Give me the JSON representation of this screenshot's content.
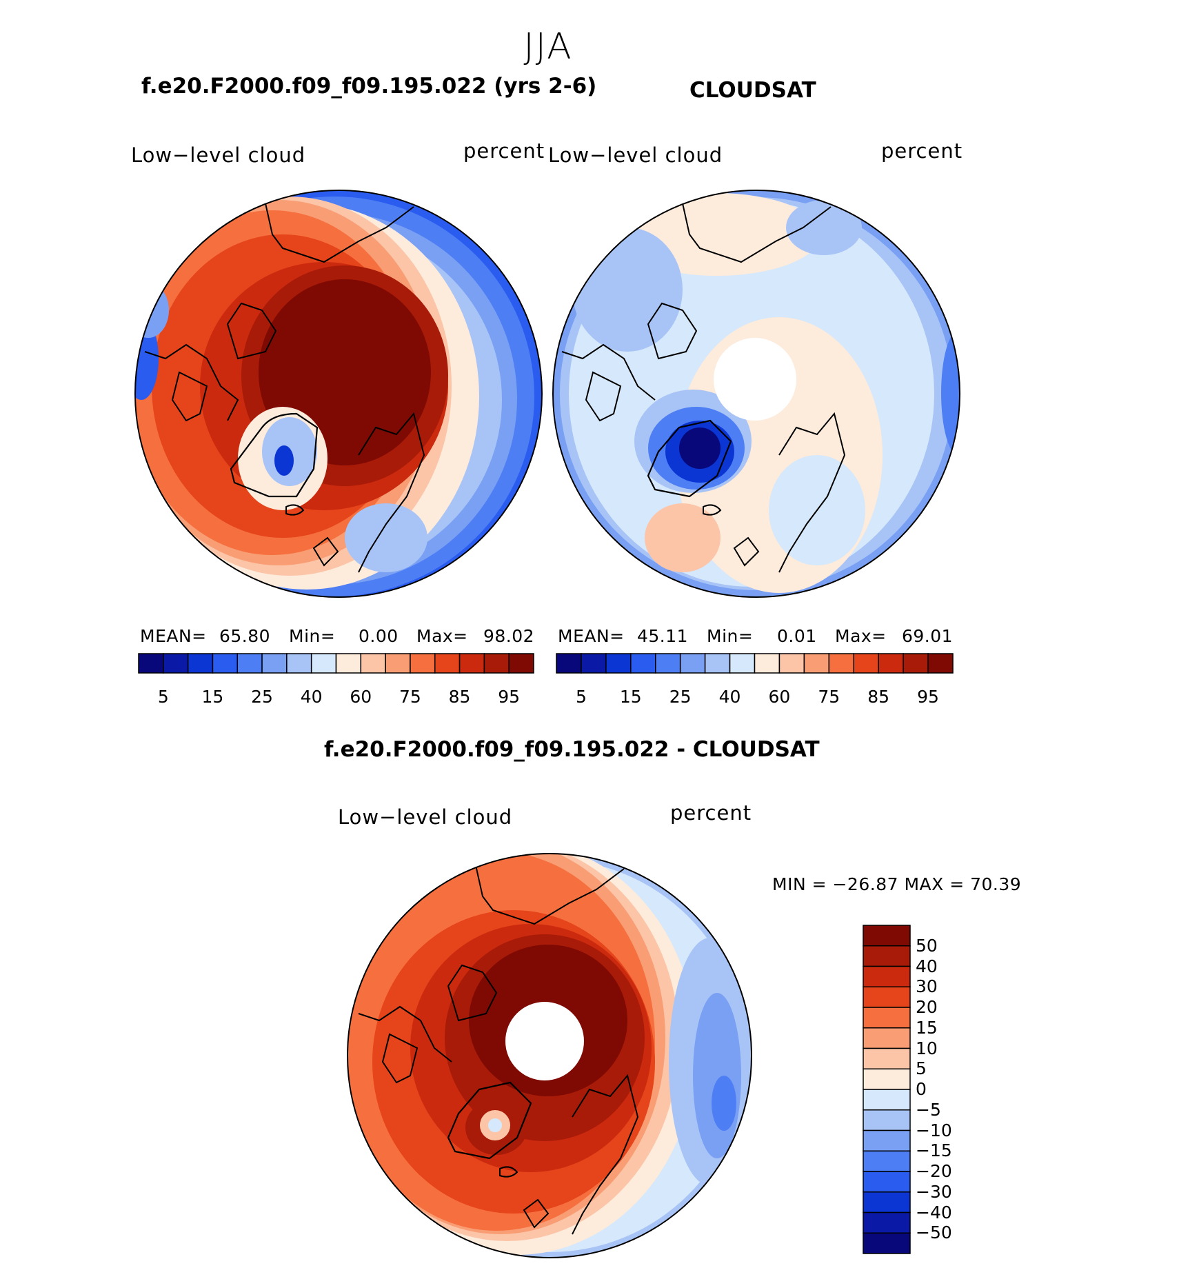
{
  "season": "JJA",
  "panels": [
    {
      "title": "f.e20.F2000.f09_f09.195.022 (yrs 2-6)",
      "left_label": "Low−level cloud",
      "right_label": "percent",
      "stats": {
        "mean_label": "MEAN=",
        "mean": "65.80",
        "min_label": "Min=",
        "min": "0.00",
        "max_label": "Max=",
        "max": "98.02"
      }
    },
    {
      "title": "CLOUDSAT",
      "left_label": "Low−level cloud",
      "right_label": "percent",
      "stats": {
        "mean_label": "MEAN=",
        "mean": "45.11",
        "min_label": "Min=",
        "min": "0.01",
        "max_label": "Max=",
        "max": "69.01"
      }
    }
  ],
  "colorbar_horizontal": {
    "levels": [
      "5",
      "10",
      "15",
      "20",
      "25",
      "30",
      "40",
      "50",
      "60",
      "70",
      "75",
      "80",
      "85",
      "90",
      "95"
    ],
    "tick_labels": [
      "5",
      "15",
      "25",
      "40",
      "60",
      "75",
      "85",
      "95"
    ],
    "colors": [
      "#08087a",
      "#0a1aa6",
      "#0b36d4",
      "#2a5cf0",
      "#4d7ef4",
      "#7aa0f4",
      "#a8c4f6",
      "#d6e8fb",
      "#fdebdc",
      "#fcc5a8",
      "#f99d74",
      "#f6703f",
      "#e6441a",
      "#cc2a0e",
      "#a81b08",
      "#7f0a04"
    ]
  },
  "difference": {
    "title": "f.e20.F2000.f09_f09.195.022 - CLOUDSAT",
    "left_label": "Low−level cloud",
    "right_label": "percent",
    "minmax": "MIN = −26.87 MAX =   70.39",
    "colorbar_vertical": {
      "levels": [
        "50",
        "40",
        "30",
        "20",
        "15",
        "10",
        "5",
        "0",
        "−5",
        "−10",
        "−15",
        "−20",
        "−30",
        "−40",
        "−50"
      ],
      "colors": [
        "#7f0a04",
        "#a81b08",
        "#cc2a0e",
        "#e6441a",
        "#f6703f",
        "#f99d74",
        "#fcc5a8",
        "#fdebdc",
        "#d6e8fb",
        "#a8c4f6",
        "#7aa0f4",
        "#4d7ef4",
        "#2a5cf0",
        "#0b36d4",
        "#0a1aa6",
        "#08087a"
      ]
    }
  }
}
